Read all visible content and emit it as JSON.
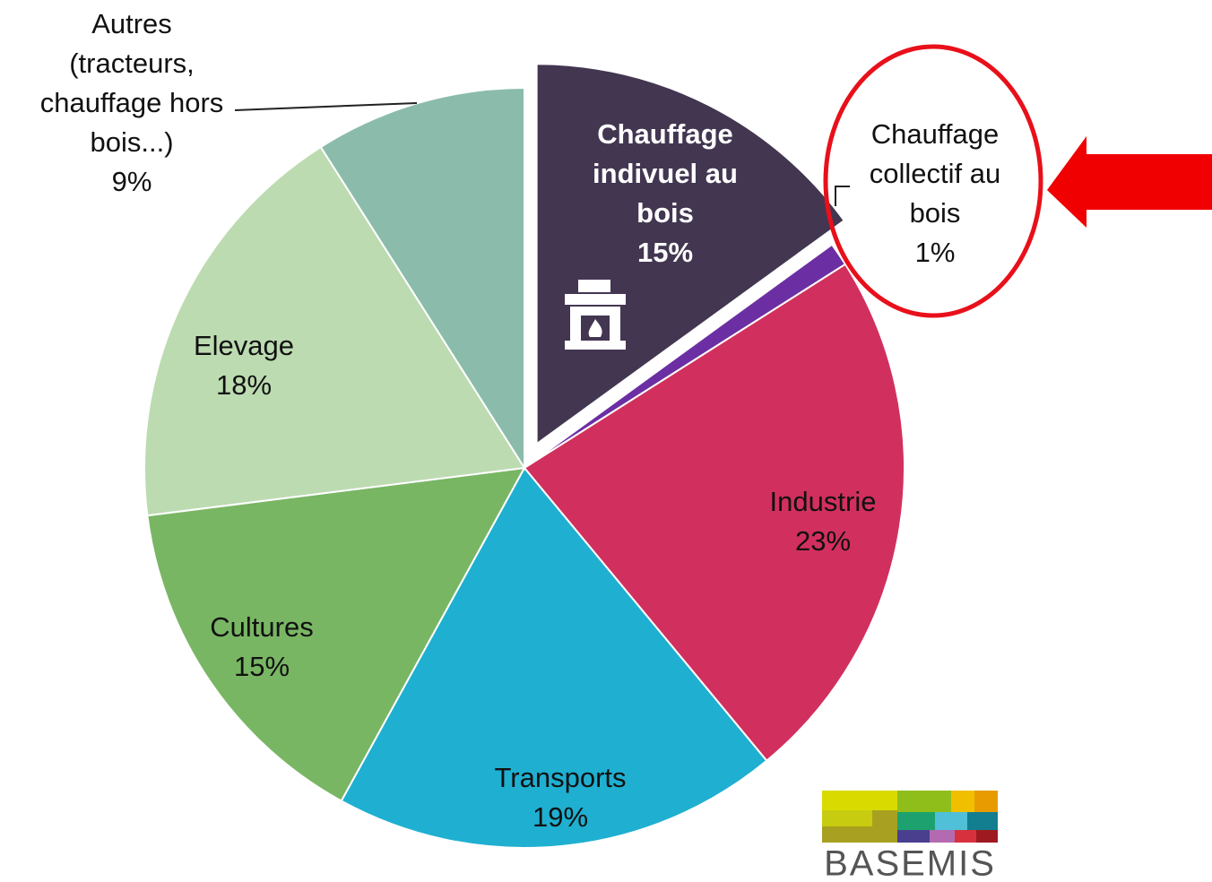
{
  "chart_data": {
    "type": "pie",
    "categories": [
      "Chauffage\nindivuel au\nbois",
      "Chauffage\ncollectif au\nbois",
      "Industrie",
      "Transports",
      "Cultures",
      "Elevage",
      "Autres\n(tracteurs,\nchauffage hors\nbois...)"
    ],
    "values": [
      15,
      1,
      23,
      19,
      15,
      18,
      9
    ],
    "value_labels": [
      "15%",
      "1%",
      "23%",
      "19%",
      "15%",
      "18%",
      "9%"
    ],
    "colors": [
      "#433651",
      "#6b2fa3",
      "#d1305e",
      "#1fafd1",
      "#79b664",
      "#bcdbb1",
      "#8bbcab"
    ],
    "logo": "BASEMIS"
  }
}
